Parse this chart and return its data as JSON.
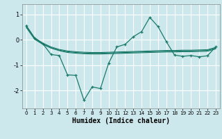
{
  "xlabel": "Humidex (Indice chaleur)",
  "bg_color": "#cce8ec",
  "grid_color": "#ffffff",
  "line_color": "#1a7a6a",
  "xlim": [
    -0.5,
    23.5
  ],
  "ylim": [
    -2.7,
    1.4
  ],
  "yticks": [
    -2,
    -1,
    0,
    1
  ],
  "xticks": [
    0,
    1,
    2,
    3,
    4,
    5,
    6,
    7,
    8,
    9,
    10,
    11,
    12,
    13,
    14,
    15,
    16,
    17,
    18,
    19,
    20,
    21,
    22,
    23
  ],
  "series1_x": [
    0,
    1,
    2,
    3,
    4,
    5,
    6,
    7,
    8,
    9,
    10,
    11,
    12,
    13,
    14,
    15,
    16,
    17,
    18,
    19,
    20,
    21,
    22,
    23
  ],
  "series1_y": [
    0.55,
    0.08,
    -0.13,
    -0.28,
    -0.38,
    -0.44,
    -0.47,
    -0.49,
    -0.5,
    -0.5,
    -0.49,
    -0.48,
    -0.47,
    -0.46,
    -0.45,
    -0.44,
    -0.43,
    -0.42,
    -0.42,
    -0.41,
    -0.41,
    -0.4,
    -0.39,
    -0.3
  ],
  "series2_x": [
    0,
    1,
    2,
    3,
    4,
    5,
    6,
    7,
    8,
    9,
    10,
    11,
    12,
    13,
    14,
    15,
    16,
    17,
    18,
    19,
    20,
    21,
    22,
    23
  ],
  "series2_y": [
    0.52,
    0.05,
    -0.16,
    -0.31,
    -0.41,
    -0.47,
    -0.5,
    -0.52,
    -0.53,
    -0.53,
    -0.52,
    -0.51,
    -0.5,
    -0.49,
    -0.48,
    -0.47,
    -0.46,
    -0.45,
    -0.45,
    -0.44,
    -0.44,
    -0.43,
    -0.42,
    -0.33
  ],
  "series3_x": [
    0,
    1,
    2,
    3,
    4,
    5,
    6,
    7,
    8,
    9,
    10,
    11,
    12,
    13,
    14,
    15,
    16,
    17,
    18,
    19,
    20,
    21,
    22,
    23
  ],
  "series3_y": [
    0.48,
    0.02,
    -0.18,
    -0.33,
    -0.43,
    -0.5,
    -0.53,
    -0.55,
    -0.56,
    -0.56,
    -0.55,
    -0.54,
    -0.53,
    -0.52,
    -0.51,
    -0.5,
    -0.49,
    -0.48,
    -0.48,
    -0.47,
    -0.47,
    -0.46,
    -0.45,
    -0.36
  ],
  "main_x": [
    0,
    1,
    2,
    3,
    4,
    5,
    6,
    7,
    8,
    9,
    10,
    11,
    12,
    13,
    14,
    15,
    16,
    17,
    18,
    19,
    20,
    21,
    22,
    23
  ],
  "main_y": [
    0.55,
    0.07,
    -0.15,
    -0.58,
    -0.62,
    -1.38,
    -1.4,
    -2.38,
    -1.85,
    -1.92,
    -0.92,
    -0.28,
    -0.18,
    0.12,
    0.32,
    0.88,
    0.52,
    -0.07,
    -0.6,
    -0.65,
    -0.62,
    -0.67,
    -0.63,
    -0.28
  ]
}
